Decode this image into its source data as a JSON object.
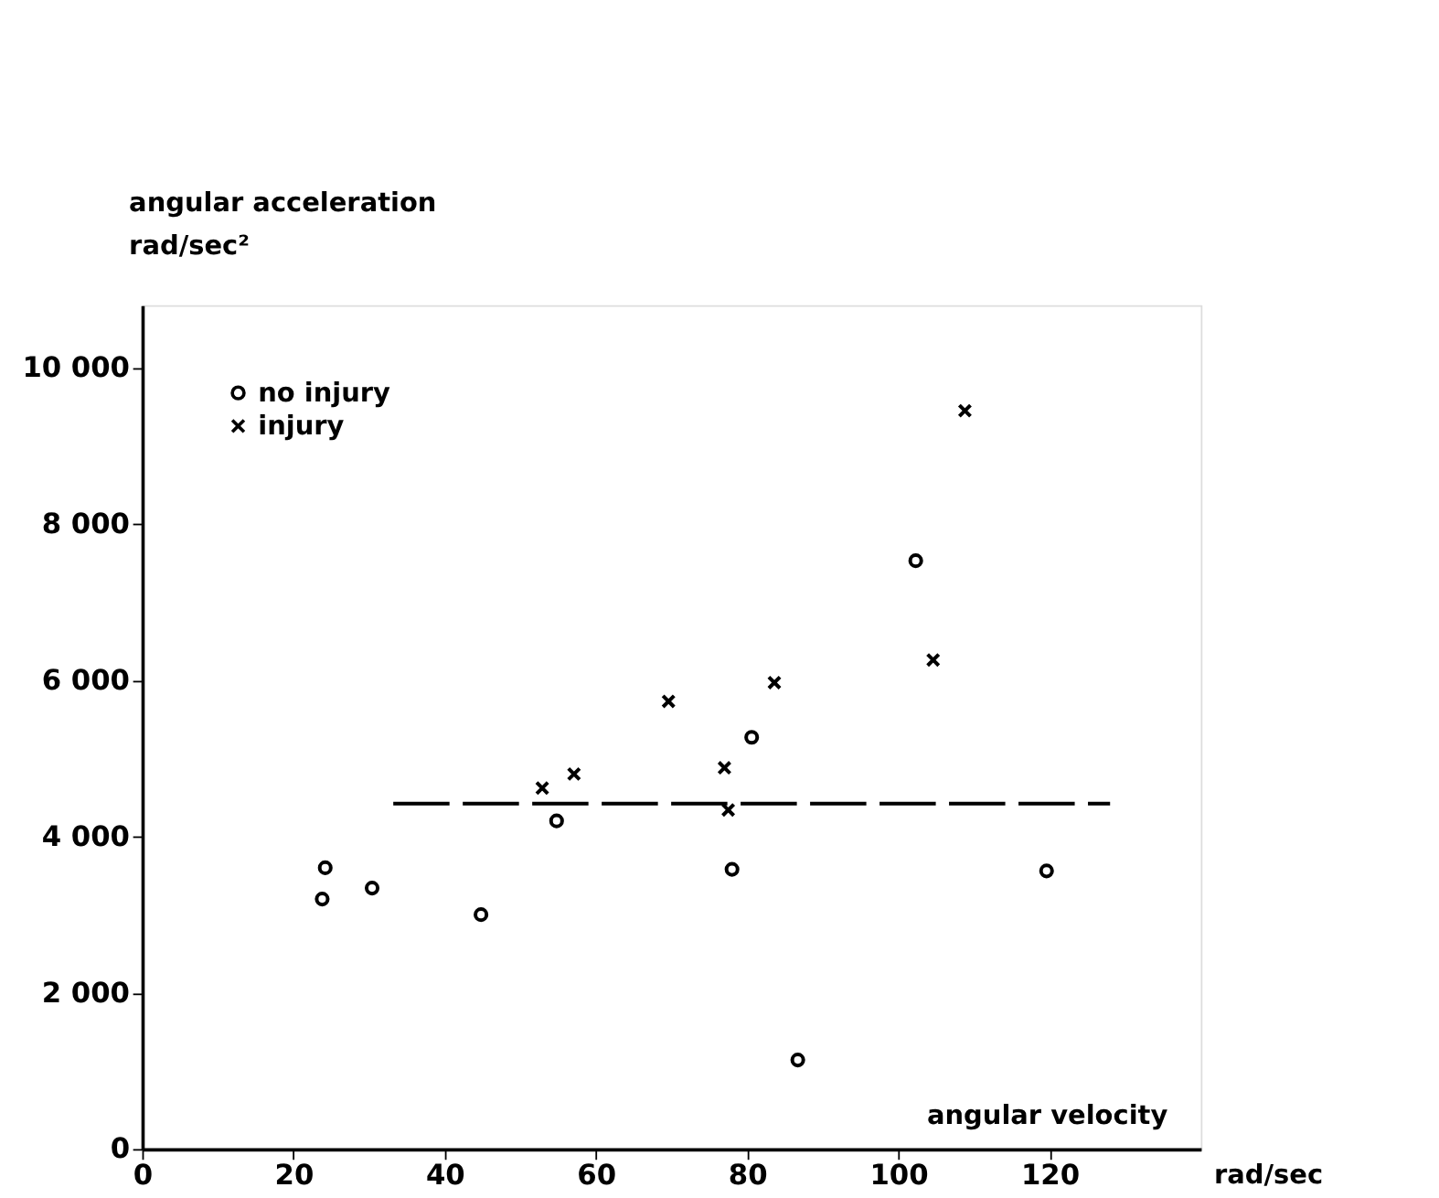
{
  "chart_data": {
    "type": "scatter",
    "xlabel": "angular velocity",
    "ylabel": "angular acceleration",
    "annotations": [
      "rad/sec²",
      "rad/sec"
    ],
    "xlim": [
      0,
      140
    ],
    "xticks": [
      0,
      20,
      40,
      60,
      80,
      100,
      120
    ],
    "ylim": [
      0,
      10800
    ],
    "yticks": [
      0,
      {
        "value": 2000,
        "label": "2 000"
      },
      {
        "value": 4000,
        "label": "4 000"
      },
      {
        "value": 6000,
        "label": "6 000"
      },
      {
        "value": 8000,
        "label": "8 000"
      },
      {
        "value": 10000,
        "label": "10 000"
      }
    ],
    "grid": false,
    "legend": "top left",
    "series": [
      {
        "name": "no injury",
        "type": "scatter",
        "marker": "circle",
        "color": "#000000",
        "x": [
          24.2,
          23.8,
          30.4,
          44.8,
          54.8,
          78.0,
          80.6,
          86.7,
          102.3,
          119.6
        ],
        "values": [
          3600,
          3200,
          3340,
          3000,
          4200,
          3580,
          5270,
          1140,
          7530,
          3560
        ]
      },
      {
        "name": "injury",
        "type": "scatter",
        "marker": "cross",
        "color": "#000000",
        "x": [
          52.9,
          57.1,
          69.6,
          77.0,
          77.5,
          83.6,
          104.6,
          108.8
        ],
        "values": [
          4620,
          4800,
          5730,
          4880,
          4340,
          5970,
          6260,
          9450
        ]
      },
      {
        "type": "line",
        "line_style": "dashed",
        "marker": "none",
        "color": "#000000",
        "x": [
          33.2,
          128.0
        ],
        "values": [
          4420,
          4420
        ]
      }
    ]
  }
}
